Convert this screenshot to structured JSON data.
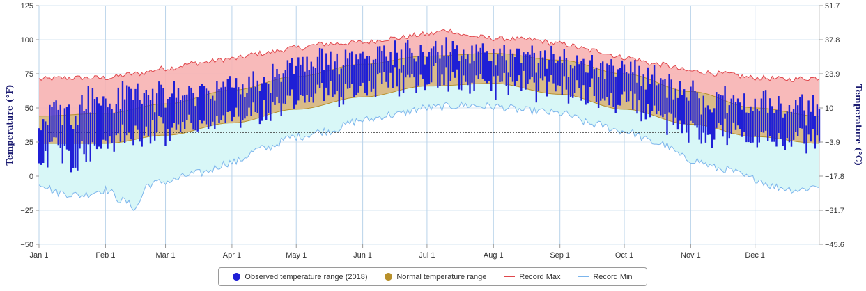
{
  "chart_data": {
    "type": "bar",
    "title": "",
    "xlabel": "",
    "ylabel": "Temperature (°F)",
    "y2label": "Temperature (°C)",
    "ylim": [
      -50,
      125
    ],
    "y_ticks": [
      125,
      100,
      75,
      50,
      25,
      0,
      -25,
      -50
    ],
    "y_tick_labels": [
      "125",
      "100",
      "75",
      "50",
      "25",
      "0",
      "−25",
      "−50"
    ],
    "y2_tick_labels": [
      "51.7",
      "37.8",
      "23.9",
      "10",
      "−3.9",
      "−17.8",
      "−31.7",
      "−45.6"
    ],
    "x_ticks": [
      {
        "day": 1,
        "label": "Jan 1"
      },
      {
        "day": 32,
        "label": "Feb 1"
      },
      {
        "day": 60,
        "label": "Mar 1"
      },
      {
        "day": 91,
        "label": "Apr 1"
      },
      {
        "day": 121,
        "label": "May 1"
      },
      {
        "day": 152,
        "label": "Jun 1"
      },
      {
        "day": 182,
        "label": "Jul 1"
      },
      {
        "day": 213,
        "label": "Aug 1"
      },
      {
        "day": 244,
        "label": "Sep 1"
      },
      {
        "day": 274,
        "label": "Oct 1"
      },
      {
        "day": 305,
        "label": "Nov 1"
      },
      {
        "day": 335,
        "label": "Dec 1"
      }
    ],
    "freezing_line_f": 32,
    "grid": true,
    "legend_position": "bottom",
    "series": [
      {
        "name": "Observed temperature range (2018)",
        "color": "#1f1fd6",
        "kind": "daily-bars"
      },
      {
        "name": "Normal temperature range",
        "color": "#b8902a",
        "kind": "band"
      },
      {
        "name": "Record Max",
        "color": "#e0474c",
        "kind": "line"
      },
      {
        "name": "Record Min",
        "color": "#7cb5ec",
        "kind": "line"
      }
    ],
    "record_max_keypoints": [
      [
        1,
        71
      ],
      [
        15,
        72
      ],
      [
        32,
        72
      ],
      [
        46,
        75
      ],
      [
        60,
        79
      ],
      [
        75,
        83
      ],
      [
        91,
        86
      ],
      [
        105,
        90
      ],
      [
        121,
        94
      ],
      [
        135,
        97
      ],
      [
        152,
        98
      ],
      [
        166,
        101
      ],
      [
        182,
        104
      ],
      [
        192,
        107
      ],
      [
        200,
        103
      ],
      [
        213,
        101
      ],
      [
        230,
        100
      ],
      [
        244,
        97
      ],
      [
        260,
        92
      ],
      [
        274,
        87
      ],
      [
        290,
        82
      ],
      [
        305,
        77
      ],
      [
        320,
        75
      ],
      [
        335,
        72
      ],
      [
        350,
        71
      ],
      [
        365,
        72
      ]
    ],
    "record_min_keypoints": [
      [
        1,
        -5
      ],
      [
        10,
        -12
      ],
      [
        20,
        -14
      ],
      [
        32,
        -10
      ],
      [
        40,
        -18
      ],
      [
        46,
        -23
      ],
      [
        52,
        -6
      ],
      [
        60,
        -4
      ],
      [
        75,
        2
      ],
      [
        91,
        10
      ],
      [
        105,
        20
      ],
      [
        121,
        29
      ],
      [
        135,
        33
      ],
      [
        152,
        41
      ],
      [
        166,
        45
      ],
      [
        182,
        50
      ],
      [
        200,
        52
      ],
      [
        213,
        51
      ],
      [
        230,
        48
      ],
      [
        244,
        46
      ],
      [
        260,
        38
      ],
      [
        274,
        33
      ],
      [
        290,
        24
      ],
      [
        305,
        12
      ],
      [
        320,
        5
      ],
      [
        335,
        -2
      ],
      [
        345,
        -8
      ],
      [
        355,
        -10
      ],
      [
        365,
        -7
      ]
    ],
    "normal_high_keypoints": [
      [
        1,
        44
      ],
      [
        32,
        46
      ],
      [
        60,
        53
      ],
      [
        91,
        63
      ],
      [
        121,
        73
      ],
      [
        152,
        82
      ],
      [
        182,
        88
      ],
      [
        213,
        90
      ],
      [
        244,
        85
      ],
      [
        274,
        75
      ],
      [
        305,
        62
      ],
      [
        335,
        50
      ],
      [
        365,
        44
      ]
    ],
    "normal_low_keypoints": [
      [
        1,
        24
      ],
      [
        32,
        24
      ],
      [
        60,
        30
      ],
      [
        91,
        39
      ],
      [
        121,
        49
      ],
      [
        152,
        58
      ],
      [
        182,
        66
      ],
      [
        213,
        68
      ],
      [
        244,
        60
      ],
      [
        274,
        49
      ],
      [
        305,
        38
      ],
      [
        335,
        29
      ],
      [
        365,
        24
      ]
    ],
    "observed_high_keypoints": [
      [
        1,
        38
      ],
      [
        8,
        52
      ],
      [
        15,
        45
      ],
      [
        25,
        58
      ],
      [
        32,
        52
      ],
      [
        45,
        62
      ],
      [
        60,
        58
      ],
      [
        75,
        62
      ],
      [
        91,
        65
      ],
      [
        105,
        70
      ],
      [
        121,
        80
      ],
      [
        135,
        84
      ],
      [
        152,
        90
      ],
      [
        166,
        90
      ],
      [
        182,
        93
      ],
      [
        195,
        91
      ],
      [
        213,
        88
      ],
      [
        230,
        86
      ],
      [
        244,
        84
      ],
      [
        260,
        82
      ],
      [
        274,
        82
      ],
      [
        285,
        74
      ],
      [
        300,
        62
      ],
      [
        315,
        55
      ],
      [
        330,
        55
      ],
      [
        345,
        52
      ],
      [
        365,
        48
      ]
    ],
    "observed_low_keypoints": [
      [
        1,
        10
      ],
      [
        8,
        22
      ],
      [
        15,
        14
      ],
      [
        25,
        20
      ],
      [
        32,
        26
      ],
      [
        45,
        30
      ],
      [
        60,
        32
      ],
      [
        75,
        38
      ],
      [
        91,
        42
      ],
      [
        105,
        46
      ],
      [
        121,
        55
      ],
      [
        135,
        60
      ],
      [
        152,
        66
      ],
      [
        166,
        70
      ],
      [
        182,
        72
      ],
      [
        195,
        70
      ],
      [
        213,
        67
      ],
      [
        230,
        66
      ],
      [
        244,
        64
      ],
      [
        260,
        60
      ],
      [
        274,
        56
      ],
      [
        285,
        48
      ],
      [
        300,
        36
      ],
      [
        315,
        30
      ],
      [
        330,
        30
      ],
      [
        345,
        28
      ],
      [
        365,
        24
      ]
    ]
  },
  "legend": {
    "observed_label": "Observed temperature range (2018)",
    "normal_label": "Normal temperature range",
    "record_max_label": "Record Max",
    "record_min_label": "Record Min",
    "observed_color": "#1f1fd6",
    "normal_color": "#b8902a",
    "record_max_color": "#e0474c",
    "record_min_color": "#7cb5ec"
  }
}
